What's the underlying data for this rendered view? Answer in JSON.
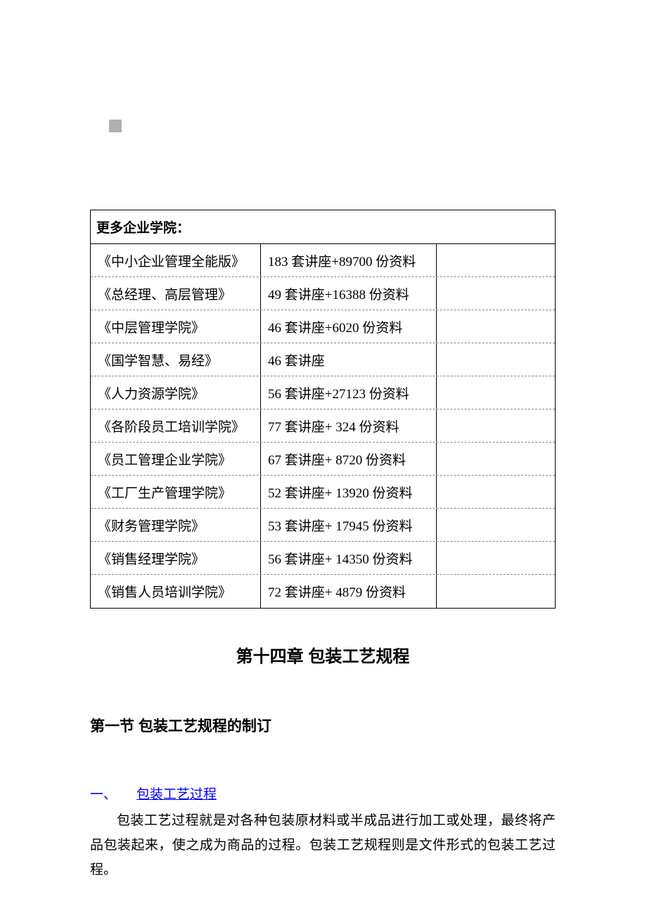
{
  "table": {
    "header": "更多企业学院：",
    "rows": [
      {
        "course": "《中小企业管理全能版》",
        "materials": "183 套讲座+89700 份资料"
      },
      {
        "course": "《总经理、高层管理》",
        "materials": "49 套讲座+16388 份资料"
      },
      {
        "course": "《中层管理学院》",
        "materials": "46 套讲座+6020 份资料"
      },
      {
        "course": "《国学智慧、易经》",
        "materials": "46 套讲座"
      },
      {
        "course": "《人力资源学院》",
        "materials": "56 套讲座+27123 份资料"
      },
      {
        "course": "《各阶段员工培训学院》",
        "materials": "77 套讲座+ 324 份资料"
      },
      {
        "course": "《员工管理企业学院》",
        "materials": "67 套讲座+ 8720 份资料"
      },
      {
        "course": "《工厂生产管理学院》",
        "materials": "52 套讲座+ 13920 份资料"
      },
      {
        "course": "《财务管理学院》",
        "materials": "53 套讲座+ 17945 份资料"
      },
      {
        "course": "《销售经理学院》",
        "materials": "56 套讲座+ 14350 份资料"
      },
      {
        "course": "《销售人员培训学院》",
        "materials": "72 套讲座+ 4879 份资料"
      }
    ]
  },
  "chapter": {
    "title": "第十四章  包装工艺规程"
  },
  "section": {
    "title": "第一节  包装工艺规程的制订"
  },
  "subsection": {
    "number": "一、",
    "label": "包装工艺过程",
    "body": "包装工艺过程就是对各种包装原材料或半成品进行加工或处理，最终将产品包装起来，使之成为商品的过程。包装工艺规程则是文件形式的包装工艺过程。"
  },
  "colors": {
    "text": "#000000",
    "link": "#0000ff",
    "background": "#ffffff",
    "graybox": "#b0b0b0",
    "border": "#000000",
    "dashed": "#888888"
  }
}
